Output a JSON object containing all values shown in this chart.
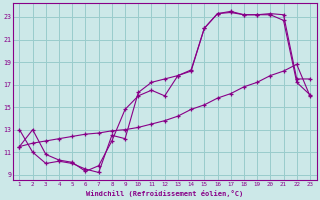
{
  "xlabel": "Windchill (Refroidissement éolien,°C)",
  "bg_color": "#cce8e8",
  "line_color": "#880088",
  "grid_color": "#99cccc",
  "x_ticks": [
    1,
    2,
    3,
    4,
    5,
    6,
    7,
    8,
    9,
    10,
    11,
    12,
    13,
    14,
    15,
    16,
    17,
    18,
    19,
    20,
    21,
    22,
    23
  ],
  "y_ticks": [
    9,
    11,
    13,
    15,
    17,
    19,
    21,
    23
  ],
  "xlim": [
    0.5,
    23.5
  ],
  "ylim": [
    8.5,
    24.2
  ],
  "curve1_x": [
    1,
    2,
    3,
    4,
    5,
    6,
    7,
    8,
    9,
    10,
    11,
    12,
    13,
    14,
    15,
    16,
    17,
    18,
    19,
    20,
    21,
    22,
    23
  ],
  "curve1_y": [
    11.5,
    13.0,
    10.8,
    10.3,
    10.1,
    9.3,
    9.8,
    12.0,
    14.8,
    16.0,
    16.5,
    16.0,
    17.8,
    18.2,
    22.0,
    23.3,
    23.5,
    23.2,
    23.2,
    23.3,
    23.2,
    17.5,
    17.5
  ],
  "curve2_x": [
    1,
    2,
    3,
    4,
    5,
    6,
    7,
    8,
    9,
    10,
    11,
    12,
    13,
    14,
    15,
    16,
    17,
    18,
    19,
    20,
    21,
    22,
    23
  ],
  "curve2_y": [
    11.5,
    11.8,
    12.0,
    12.2,
    12.4,
    12.6,
    12.7,
    12.9,
    13.0,
    13.2,
    13.5,
    13.8,
    14.2,
    14.8,
    15.2,
    15.8,
    16.2,
    16.8,
    17.2,
    17.8,
    18.2,
    18.8,
    16.0
  ],
  "curve3_x": [
    1,
    2,
    3,
    4,
    5,
    6,
    7,
    8,
    9,
    10,
    11,
    12,
    13,
    14,
    15,
    16,
    17,
    18,
    19,
    20,
    21,
    22,
    23
  ],
  "curve3_y": [
    13.0,
    11.0,
    10.0,
    10.2,
    10.0,
    9.5,
    9.2,
    12.5,
    12.2,
    16.3,
    17.2,
    17.5,
    17.8,
    18.3,
    22.0,
    23.3,
    23.4,
    23.2,
    23.2,
    23.2,
    22.7,
    17.2,
    16.1
  ]
}
